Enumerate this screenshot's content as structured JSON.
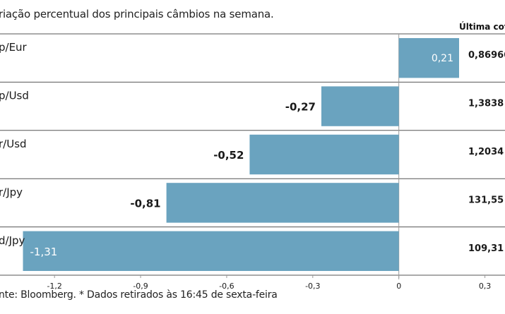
{
  "subtitle": "riação percentual dos principais câmbios na semana.",
  "source": "nte: Bloomberg.  * Dados retirados às 16:45 de sexta-feira",
  "last_quote_header": "Última cotaç",
  "colors": {
    "bar": "#6aa3bf",
    "separator": "#555555",
    "zero_line": "#999999",
    "text": "#1a1a1a",
    "label_inside": "#ffffff"
  },
  "chart_data": {
    "type": "bar",
    "orientation": "horizontal",
    "categories": [
      "p/Eur",
      "p/Usd",
      "r/Usd",
      "r/Jpy",
      "d/Jpy"
    ],
    "values": [
      0.21,
      -0.27,
      -0.52,
      -0.81,
      -1.31
    ],
    "value_labels": [
      "0,21",
      "-0,27",
      "-0,52",
      "-0,81",
      "-1,31"
    ],
    "last_quotes": [
      "0,86966",
      "1,3838",
      "1,2034",
      "131,55",
      "109,31"
    ],
    "x_ticks": [
      -1.2,
      -0.9,
      -0.6,
      -0.3,
      0,
      0.3
    ],
    "x_tick_labels": [
      "-1,2",
      "-0,9",
      "-0,6",
      "-0,3",
      "0",
      "0,3"
    ],
    "xlim": [
      -1.39,
      0.37
    ],
    "grid": false
  }
}
